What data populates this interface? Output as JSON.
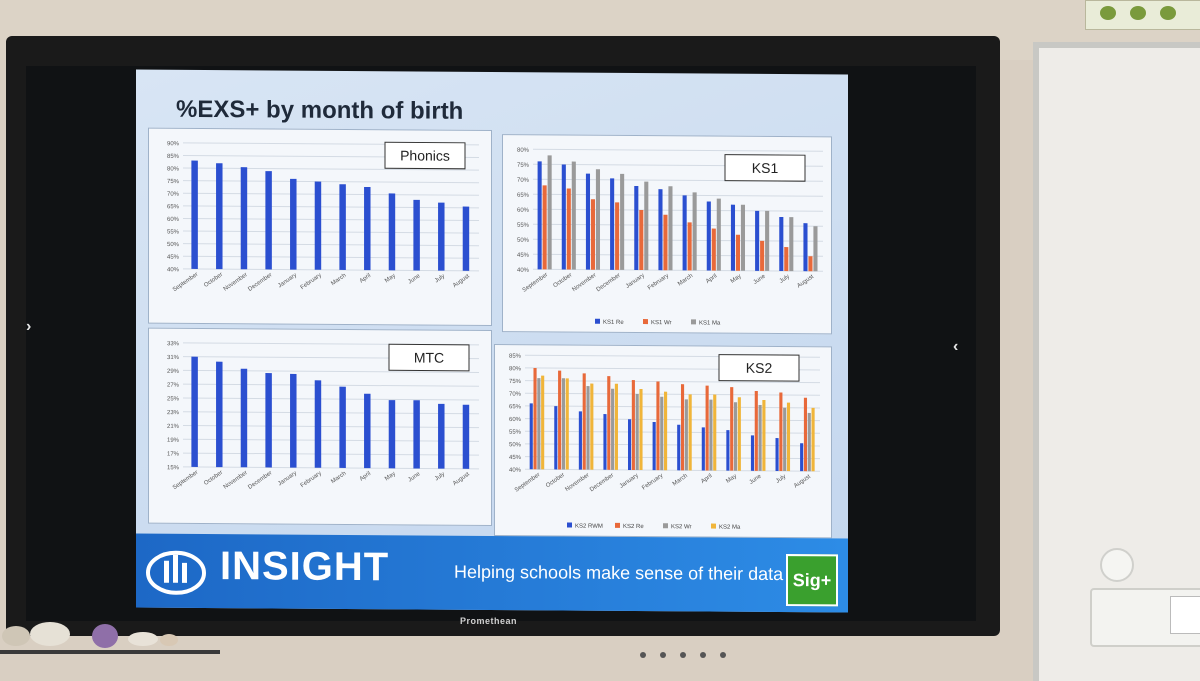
{
  "slide": {
    "title": "%EXS+ by month of birth",
    "footer": {
      "logo": "INSIGHT",
      "tagline": "Helping schools make sense of their data",
      "button": "Sig+"
    }
  },
  "bezel": {
    "brand": "Promethean"
  },
  "colors": {
    "re": "#2b4fd0",
    "wr": "#e8693a",
    "ma_gray": "#9a9a9a",
    "ma_yellow": "#f0b53a",
    "insight_blue": "#1d68c6",
    "sig_green": "#3aa02e"
  },
  "chart_data": [
    {
      "type": "bar",
      "label": "Phonics",
      "categories": [
        "September",
        "October",
        "November",
        "December",
        "January",
        "February",
        "March",
        "April",
        "May",
        "June",
        "July",
        "August"
      ],
      "yticks": [
        "90%",
        "85%",
        "80%",
        "75%",
        "70%",
        "65%",
        "60%",
        "55%",
        "50%",
        "45%",
        "40%"
      ],
      "ylim": [
        40,
        90
      ],
      "series": [
        {
          "values": [
            83,
            82,
            80.5,
            79,
            76,
            75,
            74,
            73,
            70.5,
            68,
            67,
            65.5
          ]
        }
      ]
    },
    {
      "type": "bar",
      "label": "KS1",
      "categories": [
        "September",
        "October",
        "November",
        "December",
        "January",
        "February",
        "March",
        "April",
        "May",
        "June",
        "July",
        "August"
      ],
      "yticks": [
        "80%",
        "75%",
        "70%",
        "65%",
        "60%",
        "55%",
        "50%",
        "45%",
        "40%"
      ],
      "ylim": [
        40,
        80
      ],
      "series": [
        {
          "name": "KS1 Re",
          "values": [
            76,
            75,
            72,
            70.5,
            68,
            67,
            65,
            63,
            62,
            60,
            58,
            56
          ]
        },
        {
          "name": "KS1 Wr",
          "values": [
            68,
            67,
            63.5,
            62.5,
            60,
            58.5,
            56,
            54,
            52,
            50,
            48,
            45
          ]
        },
        {
          "name": "KS1 Ma",
          "values": [
            78,
            76,
            73.5,
            72,
            69.5,
            68,
            66,
            64,
            62,
            60,
            58,
            55
          ]
        }
      ]
    },
    {
      "type": "bar",
      "label": "MTC",
      "categories": [
        "September",
        "October",
        "November",
        "December",
        "January",
        "February",
        "March",
        "April",
        "May",
        "June",
        "July",
        "August"
      ],
      "yticks": [
        "33%",
        "31%",
        "29%",
        "27%",
        "25%",
        "23%",
        "21%",
        "19%",
        "17%",
        "15%"
      ],
      "ylim": [
        15,
        33
      ],
      "series": [
        {
          "values": [
            31,
            30.3,
            29.3,
            28.7,
            28.6,
            27.7,
            26.8,
            25.8,
            24.9,
            24.9,
            24.4,
            24.3
          ]
        }
      ]
    },
    {
      "type": "bar",
      "label": "KS2",
      "categories": [
        "September",
        "October",
        "November",
        "December",
        "January",
        "February",
        "March",
        "April",
        "May",
        "June",
        "July",
        "August"
      ],
      "yticks": [
        "85%",
        "80%",
        "75%",
        "70%",
        "65%",
        "60%",
        "55%",
        "50%",
        "45%",
        "40%"
      ],
      "ylim": [
        40,
        85
      ],
      "series": [
        {
          "name": "KS2 RWM",
          "values": [
            66,
            65,
            63,
            62,
            60,
            59,
            58,
            57,
            56,
            54,
            53,
            51
          ]
        },
        {
          "name": "KS2 Re",
          "values": [
            80,
            79,
            78,
            77,
            75.5,
            75,
            74,
            73.5,
            73,
            71.5,
            71,
            69
          ]
        },
        {
          "name": "KS2 Wr",
          "values": [
            76,
            76,
            73,
            72,
            70,
            69,
            68,
            68,
            67,
            66,
            65,
            63
          ]
        },
        {
          "name": "KS2 Ma",
          "values": [
            77,
            76,
            74,
            74,
            72,
            71,
            70,
            70,
            69,
            68,
            67,
            65
          ]
        }
      ]
    }
  ]
}
